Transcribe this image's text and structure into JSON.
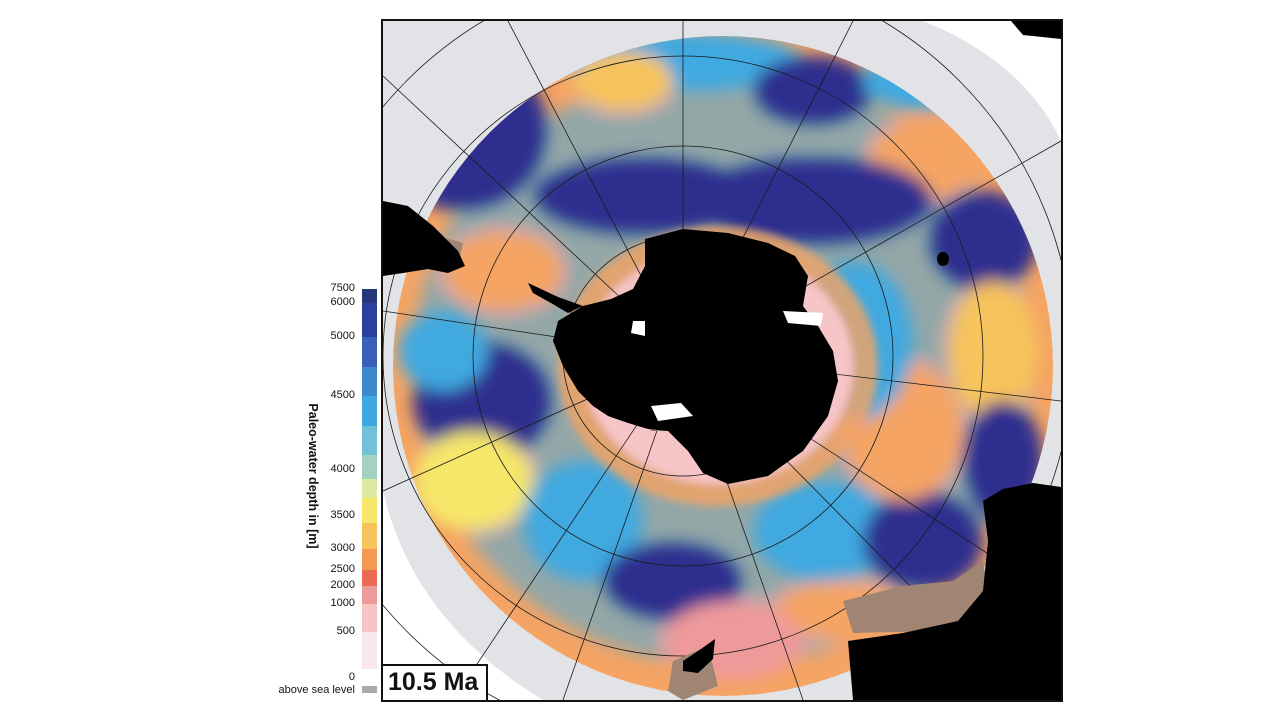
{
  "legend": {
    "title": "Paleo-water depth in [m]",
    "ticks": [
      "7500",
      "6000",
      "5000",
      "4500",
      "4000",
      "3500",
      "3000",
      "2500",
      "2000",
      "1000",
      "500",
      "0"
    ],
    "above_label": "above sea level",
    "gradient": [
      {
        "from": 7500,
        "to": 6000,
        "color": "#283777"
      },
      {
        "from": 6000,
        "to": 5000,
        "color": "#2c3f9c"
      },
      {
        "from": 5000,
        "to": 4750,
        "color": "#3a5fb8"
      },
      {
        "from": 4750,
        "to": 4500,
        "color": "#3d88cf"
      },
      {
        "from": 4500,
        "to": 4300,
        "color": "#3fa6df"
      },
      {
        "from": 4300,
        "to": 4100,
        "color": "#72c1da"
      },
      {
        "from": 4100,
        "to": 3900,
        "color": "#a3d3c0"
      },
      {
        "from": 3900,
        "to": 3700,
        "color": "#dbe9a3"
      },
      {
        "from": 3700,
        "to": 3400,
        "color": "#f6e66a"
      },
      {
        "from": 3400,
        "to": 3000,
        "color": "#f6c35c"
      },
      {
        "from": 3000,
        "to": 2500,
        "color": "#f29a52"
      },
      {
        "from": 2500,
        "to": 2000,
        "color": "#ea6a55"
      },
      {
        "from": 2000,
        "to": 1000,
        "color": "#ef9a9a"
      },
      {
        "from": 1000,
        "to": 500,
        "color": "#f6c5c8"
      },
      {
        "from": 500,
        "to": 0,
        "color": "#fbe8ea"
      }
    ]
  },
  "map": {
    "age_label": "10.5 Ma",
    "land_color": "#000000",
    "exposed_shelf_color": "#a08672",
    "ocean_deep_color": "#2d2f8f",
    "ocean_mid_color": "#41a9e0",
    "ocean_shallow_color": "#f5a463",
    "nodata_color": "#e2e3e6"
  }
}
